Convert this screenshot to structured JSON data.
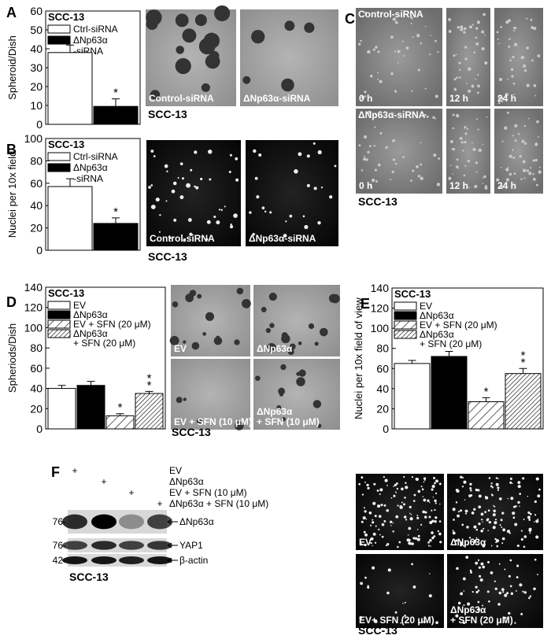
{
  "chart_data": [
    {
      "type": "bar",
      "title": "SCC-13",
      "ylabel": "Spheroid/Dish",
      "ylim": [
        0,
        60
      ],
      "yticks": [
        0,
        10,
        20,
        30,
        40,
        50,
        60
      ],
      "series": [
        {
          "name": "Ctrl-siRNA",
          "color": "#ffffff",
          "values": [
            38
          ],
          "errors": [
            4
          ]
        },
        {
          "name": "ΔNp63α\n-siRNA",
          "color": "#000000",
          "values": [
            9.5
          ],
          "errors": [
            4
          ],
          "annotation": "*"
        }
      ]
    },
    {
      "type": "bar",
      "title": "SCC-13",
      "ylabel": "Nuclei per 10x field",
      "ylim": [
        0,
        100
      ],
      "yticks": [
        0,
        20,
        40,
        60,
        80,
        100
      ],
      "series": [
        {
          "name": "Ctrl-siRNA",
          "color": "#ffffff",
          "values": [
            57
          ],
          "errors": [
            7
          ]
        },
        {
          "name": "ΔNp63α\n-siRNA",
          "color": "#000000",
          "values": [
            24
          ],
          "errors": [
            5
          ],
          "annotation": "*"
        }
      ]
    },
    {
      "type": "bar",
      "title": "SCC-13",
      "ylabel": "Spheriods/Dish",
      "ylim": [
        0,
        140
      ],
      "yticks": [
        0,
        20,
        40,
        60,
        80,
        100,
        120,
        140
      ],
      "series": [
        {
          "name": "EV",
          "color": "#ffffff",
          "values": [
            40
          ],
          "errors": [
            3
          ]
        },
        {
          "name": "ΔNp63α",
          "color": "#000000",
          "values": [
            43
          ],
          "errors": [
            4
          ]
        },
        {
          "name": "EV + SFN (20 μM)",
          "color": "#ffffff",
          "hatch": "sparse",
          "values": [
            13
          ],
          "errors": [
            2
          ],
          "annotation": "*"
        },
        {
          "name": "ΔNp63α\n+ SFN (20 μM)",
          "color": "#ffffff",
          "hatch": "dense",
          "values": [
            35
          ],
          "errors": [
            2
          ],
          "annotation": "**"
        }
      ]
    },
    {
      "type": "bar",
      "title": "SCC-13",
      "ylabel": "Nuclei per 10x field of view",
      "ylim": [
        0,
        140
      ],
      "yticks": [
        0,
        20,
        40,
        60,
        80,
        100,
        120,
        140
      ],
      "series": [
        {
          "name": "EV",
          "color": "#ffffff",
          "values": [
            65
          ],
          "errors": [
            3
          ]
        },
        {
          "name": "ΔNp63α",
          "color": "#000000",
          "values": [
            72
          ],
          "errors": [
            5
          ]
        },
        {
          "name": "EV + SFN (20 μM)",
          "color": "#ffffff",
          "hatch": "sparse",
          "values": [
            27
          ],
          "errors": [
            4
          ],
          "annotation": "*"
        },
        {
          "name": "ΔNp63α\n+ SFN (20 μM)",
          "color": "#ffffff",
          "hatch": "dense",
          "values": [
            55
          ],
          "errors": [
            5
          ],
          "annotation": "**"
        }
      ]
    }
  ],
  "panel_letters": [
    "A",
    "B",
    "C",
    "D",
    "E",
    "F"
  ],
  "image_panels": {
    "A": {
      "images": [
        "Control-siRNA",
        "ΔNp63α-siRNA"
      ],
      "caption": "SCC-13"
    },
    "B": {
      "images": [
        "Control-siRNA",
        "ΔNp63α-siRNA"
      ],
      "caption": "SCC-13"
    },
    "C": {
      "rows": [
        "Control-siRNA",
        "ΔNp63α-siRNA"
      ],
      "times": [
        "0 h",
        "12 h",
        "24 h"
      ],
      "caption": "SCC-13"
    },
    "D": {
      "images": [
        "EV",
        "ΔNp63α",
        "EV + SFN (10 μM)",
        "ΔNp63α\n+ SFN (10 μM)"
      ],
      "caption": "SCC-13"
    },
    "E": {
      "images": [
        "EV",
        "ΔNp63α",
        "EV+ SFN (20 μM)",
        "ΔNp63α\n+ SFN (20 μM)"
      ],
      "caption": "SCC-13"
    }
  },
  "western_blot": {
    "lane_marker": "+",
    "lanes": [
      "EV",
      "ΔNp63α",
      "EV + SFN (10 μM)",
      "ΔNp63α + SFN (10 μM)"
    ],
    "markers": [
      "76-",
      "76-",
      "42-"
    ],
    "bands": [
      "ΔNp63α",
      "YAP1",
      "β-actin"
    ],
    "caption": "SCC-13"
  }
}
